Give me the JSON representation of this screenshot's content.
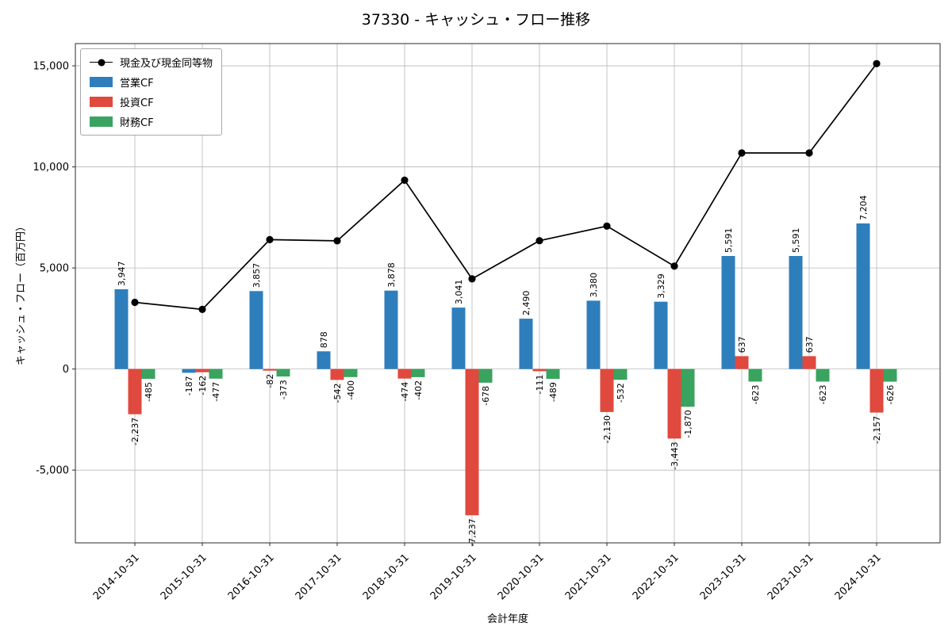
{
  "chart_data": {
    "type": "bar",
    "subtype": "grouped-bars-with-line",
    "title": "37330 - キャッシュ・フロー推移",
    "xlabel": "会計年度",
    "ylabel": "キャッシュ・フロー（百万円）",
    "categories": [
      "2014-10-31",
      "2015-10-31",
      "2016-10-31",
      "2017-10-31",
      "2018-10-31",
      "2019-10-31",
      "2020-10-31",
      "2021-10-31",
      "2022-10-31",
      "2023-10-31",
      "2023-10-31",
      "2024-10-31"
    ],
    "series": [
      {
        "name": "営業CF",
        "type": "bar",
        "color": "#2e7ebc",
        "values": [
          3947,
          -187,
          3857,
          878,
          3878,
          3041,
          2490,
          3380,
          3329,
          5591,
          5591,
          7204
        ]
      },
      {
        "name": "投資CF",
        "type": "bar",
        "color": "#e0493d",
        "values": [
          -2237,
          -162,
          -82,
          -542,
          -474,
          -7237,
          -111,
          -2130,
          -3443,
          637,
          637,
          -2157
        ]
      },
      {
        "name": "財務CF",
        "type": "bar",
        "color": "#3aa35f",
        "values": [
          -485,
          -477,
          -373,
          -400,
          -402,
          -678,
          -489,
          -532,
          -1870,
          -623,
          -623,
          -626
        ]
      },
      {
        "name": "現金及び現金同等物",
        "type": "line",
        "color": "#000000",
        "values": [
          3300,
          2950,
          6400,
          6340,
          9340,
          4460,
          6350,
          7070,
          5090,
          10690,
          10690,
          15110
        ]
      }
    ],
    "yticks": [
      -5000,
      0,
      5000,
      10000,
      15000
    ],
    "ylim": [
      -8600,
      16100
    ],
    "grid": true,
    "legend_position": "upper left"
  }
}
